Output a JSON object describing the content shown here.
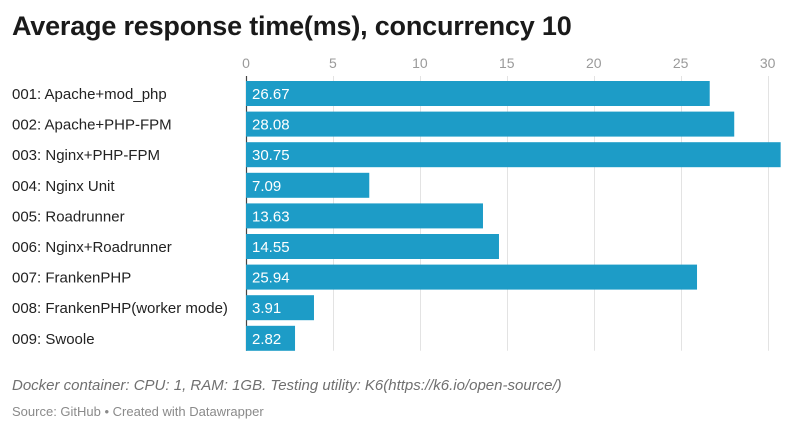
{
  "chart_data": {
    "type": "bar",
    "orientation": "horizontal",
    "title": "Average response time(ms), concurrency 10",
    "categories": [
      "001: Apache+mod_php",
      "002: Apache+PHP-FPM",
      "003: Nginx+PHP-FPM",
      "004: Nginx Unit",
      "005: Roadrunner",
      "006: Nginx+Roadrunner",
      "007: FrankenPHP",
      "008: FrankenPHP(worker mode)",
      "009: Swoole"
    ],
    "values": [
      26.67,
      28.08,
      30.75,
      7.09,
      13.63,
      14.55,
      25.94,
      3.91,
      2.82
    ],
    "value_labels": [
      "26.67",
      "28.08",
      "30.75",
      "7.09",
      "13.63",
      "14.55",
      "25.94",
      "3.91",
      "2.82"
    ],
    "xticks": [
      0,
      5,
      10,
      15,
      20,
      25,
      30
    ],
    "xlim": [
      0,
      31
    ],
    "xlabel": "",
    "ylabel": "",
    "grid": true,
    "axis_position": "top",
    "bar_color": "#1d9cc7"
  },
  "notes": "Docker container: CPU: 1, RAM: 1GB. Testing utility: K6(https://k6.io/open-source/)",
  "source": "Source: GitHub • Created with Datawrapper"
}
